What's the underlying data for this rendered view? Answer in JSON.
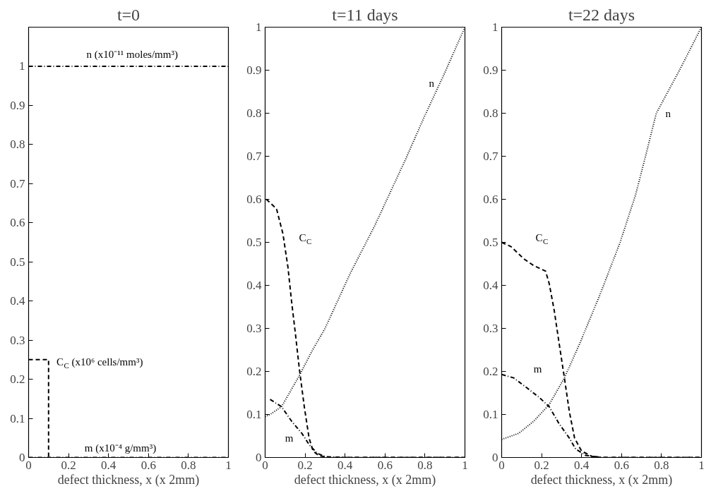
{
  "chart_data": [
    {
      "type": "line",
      "title": "t=0",
      "xlabel": "defect thickness, x (x 2mm)",
      "xlim": [
        0,
        1
      ],
      "ylim": [
        0,
        1.1
      ],
      "xticks": [
        0,
        0.2,
        0.4,
        0.6,
        0.8,
        1
      ],
      "yticks": [
        0,
        0.1,
        0.2,
        0.3,
        0.4,
        0.5,
        0.6,
        0.7,
        0.8,
        0.9,
        1
      ],
      "grid": false,
      "series": [
        {
          "name": "n (x10⁻¹¹ moles/mm³)",
          "color": "#000000",
          "line_style": "dashdot",
          "x": [
            0,
            1
          ],
          "values": [
            1,
            1
          ]
        },
        {
          "name": "C$_{C}$ (x10⁶ cells/mm³)",
          "color": "#000000",
          "line_style": "dashed",
          "x": [
            0,
            0.1,
            0.1
          ],
          "values": [
            0.25,
            0.25,
            0
          ]
        },
        {
          "name": "m (x10⁻⁴ g/mm³)",
          "color": "#000000",
          "line_style": "dashdot",
          "x": [
            0,
            1
          ],
          "values": [
            0,
            0
          ]
        }
      ]
    },
    {
      "type": "line",
      "title": "t=11 days",
      "xlabel": "defect thickness, x (x 2mm)",
      "xlim": [
        0,
        1
      ],
      "ylim": [
        0,
        1
      ],
      "xticks": [
        0,
        0.2,
        0.4,
        0.6,
        0.8,
        1
      ],
      "yticks": [
        0,
        0.1,
        0.2,
        0.3,
        0.4,
        0.5,
        0.6,
        0.7,
        0.8,
        0.9,
        1
      ],
      "grid": false,
      "series": [
        {
          "name": "n",
          "color": "#000000",
          "line_style": "dotted",
          "x": [
            0,
            0.025,
            0.082,
            0.171,
            0.234,
            0.3,
            0.424,
            0.55,
            0.61,
            0.7,
            0.8,
            0.9,
            1
          ],
          "values": [
            0.095,
            0.1,
            0.118,
            0.19,
            0.247,
            0.3,
            0.426,
            0.54,
            0.6,
            0.69,
            0.795,
            0.895,
            1
          ]
        },
        {
          "name": "C$_{C}$",
          "color": "#000000",
          "line_style": "dashed",
          "x": [
            0.006,
            0.057,
            0.089,
            0.114,
            0.133,
            0.152,
            0.171,
            0.196,
            0.22,
            0.24,
            0.27,
            0.32,
            0.4,
            1
          ],
          "values": [
            0.6,
            0.578,
            0.52,
            0.443,
            0.36,
            0.286,
            0.207,
            0.118,
            0.045,
            0.015,
            0.004,
            0,
            0,
            0
          ]
        },
        {
          "name": "m",
          "color": "#000000",
          "line_style": "dashdot",
          "x": [
            0.025,
            0.082,
            0.133,
            0.184,
            0.22,
            0.26,
            0.3,
            0.4,
            1
          ],
          "values": [
            0.135,
            0.118,
            0.084,
            0.056,
            0.03,
            0.01,
            0.002,
            0,
            0
          ]
        }
      ]
    },
    {
      "type": "line",
      "title": "t=22 days",
      "xlabel": "defect thickness, x (x 2mm)",
      "xlim": [
        0,
        1
      ],
      "ylim": [
        0,
        1
      ],
      "xticks": [
        0,
        0.2,
        0.4,
        0.6,
        0.8,
        1
      ],
      "yticks": [
        0,
        0.1,
        0.2,
        0.3,
        0.4,
        0.5,
        0.6,
        0.7,
        0.8,
        0.9,
        1
      ],
      "grid": false,
      "series": [
        {
          "name": "n",
          "color": "#000000",
          "line_style": "dotted",
          "x": [
            0,
            0.085,
            0.16,
            0.238,
            0.314,
            0.39,
            0.49,
            0.593,
            0.67,
            0.72,
            0.774,
            0.89,
            1
          ],
          "values": [
            0.042,
            0.056,
            0.084,
            0.123,
            0.185,
            0.264,
            0.376,
            0.5,
            0.61,
            0.7,
            0.8,
            0.9,
            1
          ]
        },
        {
          "name": "C$_{C}$",
          "color": "#000000",
          "line_style": "dashed",
          "x": [
            0,
            0.047,
            0.11,
            0.16,
            0.22,
            0.238,
            0.263,
            0.288,
            0.314,
            0.339,
            0.365,
            0.4,
            0.45,
            0.5,
            1
          ],
          "values": [
            0.5,
            0.49,
            0.462,
            0.446,
            0.433,
            0.404,
            0.342,
            0.264,
            0.185,
            0.106,
            0.045,
            0.015,
            0.003,
            0,
            0
          ]
        },
        {
          "name": "m",
          "color": "#000000",
          "line_style": "dashdot",
          "x": [
            0,
            0.06,
            0.123,
            0.187,
            0.238,
            0.288,
            0.339,
            0.37,
            0.42,
            0.5,
            1
          ],
          "values": [
            0.193,
            0.185,
            0.163,
            0.14,
            0.118,
            0.078,
            0.045,
            0.02,
            0.005,
            0,
            0
          ]
        }
      ]
    }
  ]
}
